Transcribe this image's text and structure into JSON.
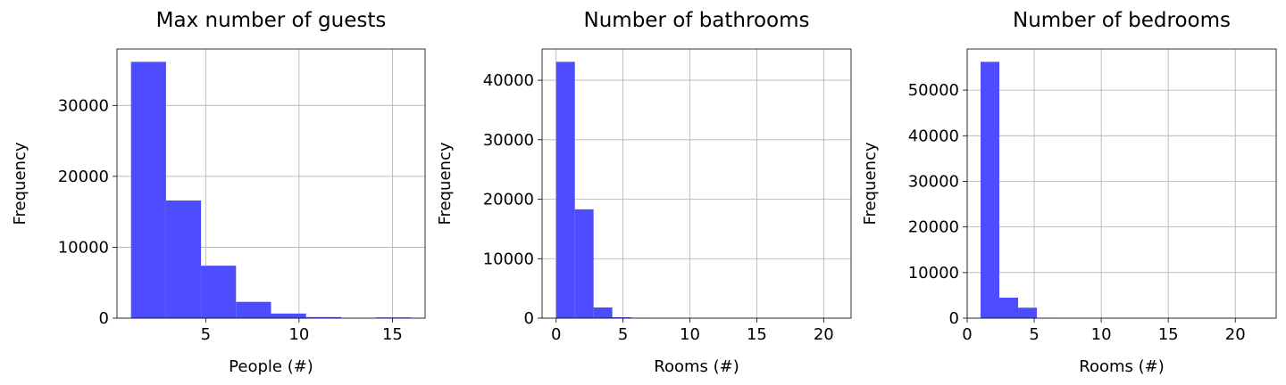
{
  "chart_data": [
    {
      "type": "bar",
      "title": "Max number of guests",
      "xlabel": "People (#)",
      "ylabel": "Frequency",
      "bin_edges": [
        1.0,
        2.875,
        4.75,
        6.625,
        8.5,
        10.375,
        12.25,
        14.125,
        16.0
      ],
      "values": [
        36150,
        16600,
        7400,
        2300,
        650,
        150,
        0,
        100
      ],
      "xlim": [
        0.25,
        16.75
      ],
      "ylim": [
        0,
        37958
      ],
      "xticks": [
        5,
        10,
        15
      ],
      "yticks": [
        0,
        10000,
        20000,
        30000
      ],
      "grid": true,
      "color": "#4d4dff"
    },
    {
      "type": "bar",
      "title": "Number of bathrooms",
      "xlabel": "Rooms (#)",
      "ylabel": "Frequency",
      "bin_edges": [
        0.0,
        1.4,
        2.8,
        4.2,
        5.6,
        7.0,
        8.4,
        9.8,
        11.2,
        12.6,
        14.0,
        15.4,
        16.8,
        18.2,
        19.6,
        21.0
      ],
      "values": [
        43100,
        18300,
        1800,
        150,
        20,
        10,
        5,
        5,
        0,
        0,
        0,
        0,
        0,
        0,
        5
      ],
      "xlim": [
        -1.05,
        22.05
      ],
      "ylim": [
        0,
        45255
      ],
      "xticks": [
        0,
        5,
        10,
        15,
        20
      ],
      "yticks": [
        0,
        10000,
        20000,
        30000,
        40000
      ],
      "grid": true,
      "color": "#4d4dff"
    },
    {
      "type": "bar",
      "title": "Number of bedrooms",
      "xlabel": "Rooms (#)",
      "ylabel": "Frequency",
      "bin_edges": [
        1.0,
        2.4,
        3.8,
        5.2,
        6.6,
        8.0,
        9.4,
        10.8,
        12.2,
        13.6,
        15.0,
        16.4,
        17.8,
        19.2,
        20.6,
        22.0
      ],
      "values": [
        56200,
        4500,
        2300,
        50,
        10,
        5,
        0,
        0,
        0,
        0,
        0,
        0,
        0,
        0,
        5
      ],
      "xlim": [
        0.0,
        23.05
      ],
      "ylim": [
        0,
        59010
      ],
      "xticks": [
        0,
        5,
        10,
        15,
        20
      ],
      "yticks": [
        0,
        10000,
        20000,
        30000,
        40000,
        50000
      ],
      "grid": true,
      "color": "#4d4dff"
    }
  ]
}
